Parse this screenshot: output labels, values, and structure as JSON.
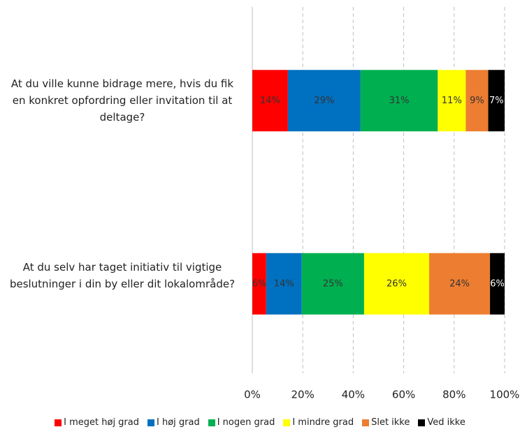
{
  "chart_data": {
    "type": "stacked_barh",
    "categories": [
      "At du ville kunne bidrage mere, hvis du fik en konkret opfordring eller invitation til at deltage?",
      "At du selv har taget initiativ til vigtige beslutninger i din by eller dit lokalområde?"
    ],
    "series": [
      {
        "name": "I meget høj grad",
        "color": "#ff0000",
        "values": [
          14.1,
          5.5
        ],
        "value_labels": [
          "14%",
          "6%"
        ]
      },
      {
        "name": "I høj grad",
        "color": "#0070c0",
        "values": [
          28.8,
          14.1
        ],
        "value_labels": [
          "29%",
          "14%"
        ]
      },
      {
        "name": "I nogen grad",
        "color": "#00b050",
        "values": [
          30.6,
          24.7
        ],
        "value_labels": [
          "31%",
          "25%"
        ]
      },
      {
        "name": "I mindre grad",
        "color": "#ffff00",
        "values": [
          11.1,
          25.8
        ],
        "value_labels": [
          "11%",
          "26%"
        ]
      },
      {
        "name": "Slet ikke",
        "color": "#ed7d31",
        "values": [
          8.9,
          24.1
        ],
        "value_labels": [
          "9%",
          "24%"
        ]
      },
      {
        "name": "Ved ikke",
        "color": "#000000",
        "values": [
          6.5,
          5.8
        ],
        "value_labels": [
          "7%",
          "6%"
        ]
      }
    ],
    "xlim": [
      0,
      100
    ],
    "xticks": [
      {
        "value": 0,
        "label": "0%"
      },
      {
        "value": 20,
        "label": "20%"
      },
      {
        "value": 40,
        "label": "40%"
      },
      {
        "value": 60,
        "label": "60%"
      },
      {
        "value": 80,
        "label": "80%"
      },
      {
        "value": 100,
        "label": "100%"
      }
    ],
    "grid": true,
    "legend": "bottom"
  }
}
